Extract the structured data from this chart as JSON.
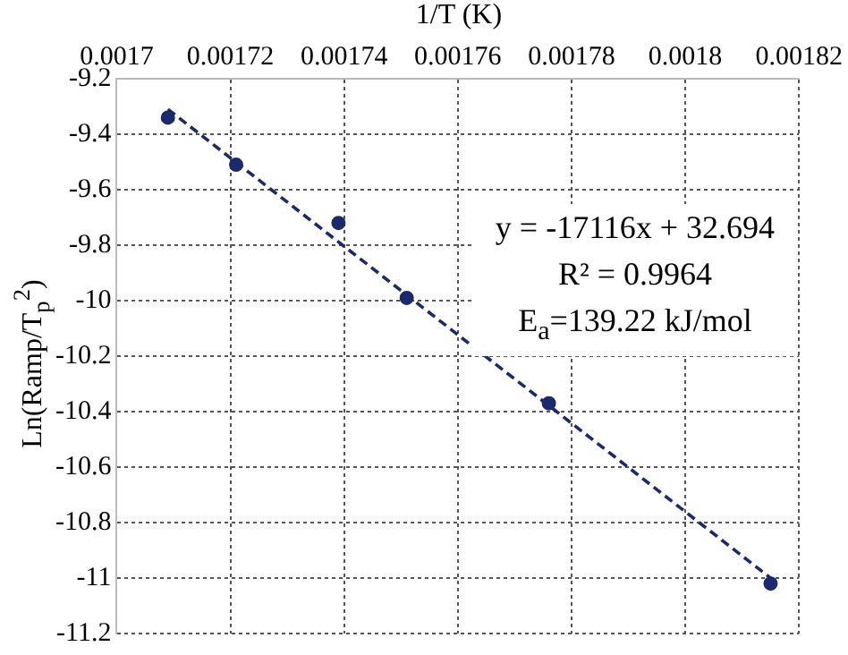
{
  "chart_data": {
    "type": "scatter",
    "xlabel": "1/T (K)",
    "ylabel": "Ln(Ramp/T$_{p}$$^{2}$)",
    "xlim": [
      0.0017,
      0.00182
    ],
    "xticks": [
      0.0017,
      0.00172,
      0.00174,
      0.00176,
      0.00178,
      0.0018,
      0.00182
    ],
    "ylim": [
      -11.2,
      -9.2
    ],
    "yticks": [
      -9.2,
      -9.4,
      -9.6,
      -9.8,
      -10,
      -10.2,
      -10.4,
      -10.6,
      -10.8,
      -11,
      -11.2
    ],
    "grid": true,
    "legend": false,
    "marker": "circle",
    "series": [
      {
        "color": "#1a2a6c",
        "x": [
          0.001709,
          0.001721,
          0.001739,
          0.001751,
          0.001776,
          0.001815
        ],
        "values": [
          -9.34,
          -9.51,
          -9.72,
          -9.99,
          -10.37,
          -11.02
        ]
      },
      {
        "type": "line",
        "color": "#1a2a6c",
        "line_style": "dashed",
        "marker": "none",
        "x": [
          0.001709,
          0.001815
        ],
        "values": [
          -9.31,
          -11.0
        ]
      }
    ],
    "annotations": [
      "y = -17116x + 32.694",
      "R² = 0.9964",
      "E$_{a}$=139.22 kJ/mol"
    ]
  }
}
